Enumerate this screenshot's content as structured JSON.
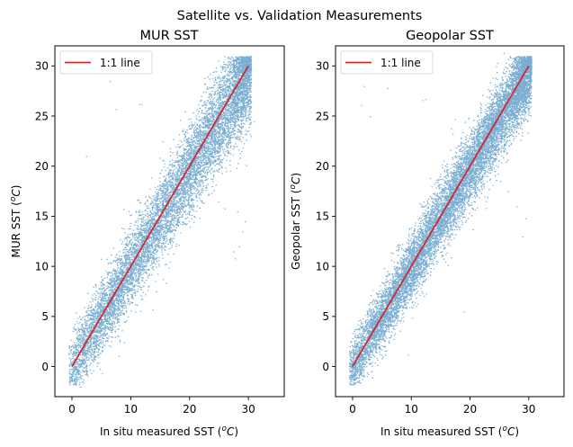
{
  "figure": {
    "suptitle": "Satellite vs. Validation Measurements"
  },
  "chart_data": [
    {
      "type": "scatter",
      "title": "MUR SST",
      "xlabel": "In situ measured SST (°C)",
      "xlabel_parts": {
        "text": "In situ measured SST (",
        "sup": "o",
        "unit": "C",
        "close": ")"
      },
      "ylabel": "MUR SST (°C)",
      "ylabel_parts": {
        "text": "MUR SST (",
        "sup": "o",
        "unit": "C",
        "close": ")"
      },
      "xlim": [
        -2.9,
        36.1
      ],
      "ylim": [
        -3.0,
        32.0
      ],
      "xticks": [
        0,
        10,
        20,
        30
      ],
      "yticks": [
        0,
        5,
        10,
        15,
        20,
        25,
        30
      ],
      "grid": false,
      "legend": {
        "placement": "upper-left",
        "entries": [
          {
            "label": "1:1 line",
            "color": "#d62728"
          }
        ]
      },
      "reference_line": {
        "label": "1:1 line",
        "x": [
          0,
          30
        ],
        "y": [
          0,
          30
        ],
        "color": "#d62728"
      },
      "scatter": {
        "color": "#1f77b4",
        "alpha": 0.6,
        "n_points": 9000,
        "x_range": [
          -0.5,
          32
        ],
        "bias": -0.6,
        "spread_sd": 1.6,
        "spread_growth_per_unit": 0.03,
        "seed": 11,
        "outliers": [
          {
            "x": 6.5,
            "y": 28.5
          },
          {
            "x": 11.5,
            "y": 26.2
          },
          {
            "x": 11.9,
            "y": 26.2
          },
          {
            "x": 2.5,
            "y": 21.0
          },
          {
            "x": 7.5,
            "y": 25.7
          },
          {
            "x": 28.5,
            "y": 12.0
          },
          {
            "x": 29.0,
            "y": 13.5
          },
          {
            "x": 27.5,
            "y": 11.5
          },
          {
            "x": 28.2,
            "y": 15.5
          },
          {
            "x": 27.8,
            "y": 10.8
          },
          {
            "x": 29.5,
            "y": 14.5
          },
          {
            "x": 25.0,
            "y": 16.5
          },
          {
            "x": 26.0,
            "y": 15.8
          },
          {
            "x": 30.5,
            "y": 23.0
          },
          {
            "x": 31.0,
            "y": 24.5
          },
          {
            "x": 1.5,
            "y": -2.0
          },
          {
            "x": 2.0,
            "y": -1.6
          },
          {
            "x": 0.8,
            "y": -1.0
          }
        ]
      }
    },
    {
      "type": "scatter",
      "title": "Geopolar SST",
      "xlabel": "In situ measured SST (°C)",
      "xlabel_parts": {
        "text": "In situ measured SST (",
        "sup": "o",
        "unit": "C",
        "close": ")"
      },
      "ylabel": "Geopolar SST (°C)",
      "ylabel_parts": {
        "text": "Geopolar SST (",
        "sup": "o",
        "unit": "C",
        "close": ")"
      },
      "xlim": [
        -2.9,
        36.0
      ],
      "ylim": [
        -3.0,
        32.0
      ],
      "xticks": [
        0,
        10,
        20,
        30
      ],
      "yticks": [
        0,
        5,
        10,
        15,
        20,
        25,
        30
      ],
      "grid": false,
      "legend": {
        "placement": "upper-left",
        "entries": [
          {
            "label": "1:1 line",
            "color": "#d62728"
          }
        ]
      },
      "reference_line": {
        "label": "1:1 line",
        "x": [
          0,
          30
        ],
        "y": [
          0,
          30
        ],
        "color": "#d62728"
      },
      "scatter": {
        "color": "#1f77b4",
        "alpha": 0.6,
        "n_points": 11000,
        "x_range": [
          -0.5,
          32
        ],
        "bias": -0.4,
        "spread_sd": 1.35,
        "spread_growth_per_unit": 0.02,
        "seed": 29,
        "outliers": [
          {
            "x": 2.0,
            "y": 28.0
          },
          {
            "x": 1.5,
            "y": 26.1
          },
          {
            "x": 6.0,
            "y": 27.8
          },
          {
            "x": 3.0,
            "y": 25.0
          },
          {
            "x": 12.0,
            "y": 26.6
          },
          {
            "x": 12.5,
            "y": 26.7
          },
          {
            "x": 17.5,
            "y": 24.7
          },
          {
            "x": 25.8,
            "y": 31.3
          },
          {
            "x": 29.0,
            "y": 13.0
          },
          {
            "x": 29.5,
            "y": 14.8
          },
          {
            "x": 28.0,
            "y": 16.0
          },
          {
            "x": 26.5,
            "y": 17.5
          },
          {
            "x": 19.0,
            "y": 5.5
          },
          {
            "x": 9.5,
            "y": 1.2
          },
          {
            "x": 4.5,
            "y": 2.0
          }
        ]
      }
    }
  ]
}
